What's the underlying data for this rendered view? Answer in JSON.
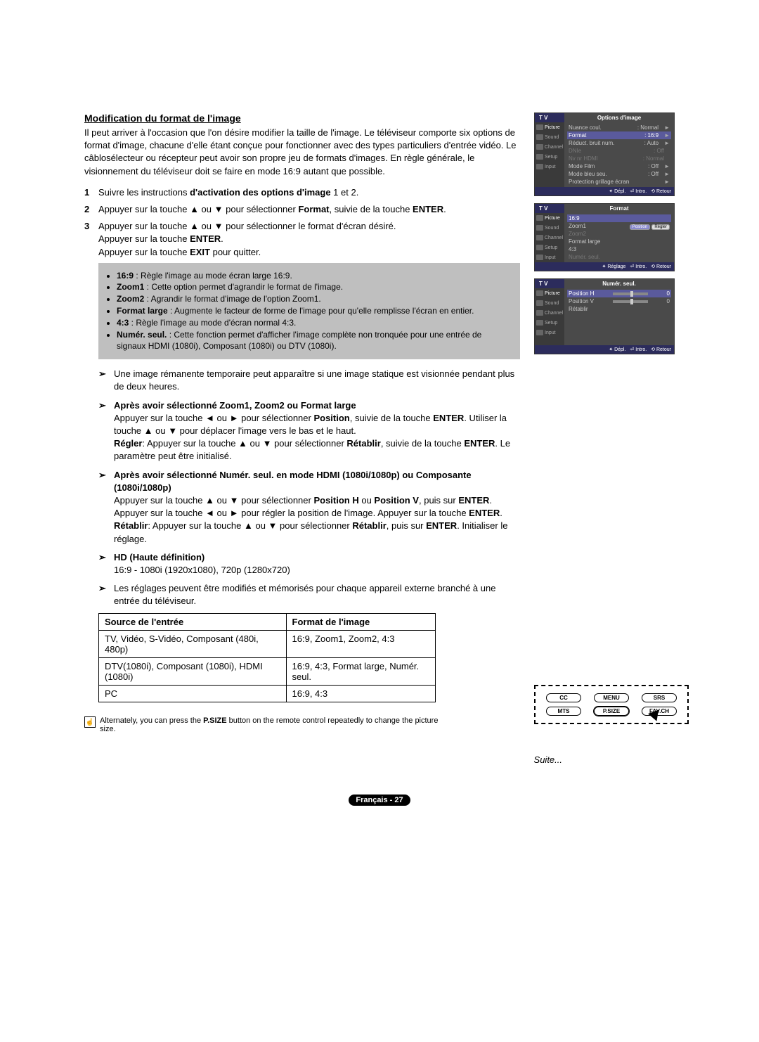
{
  "section_title": "Modification du format de l'image",
  "intro": "Il peut arriver à l'occasion que l'on désire modifier la taille de l'image. Le téléviseur comporte six options de format d'image, chacune d'elle étant conçue pour fonctionner avec des types particuliers d'entrée vidéo. Le câblosélecteur ou récepteur peut avoir son propre jeu de formats d'images. En règle générale, le visionnement du téléviseur doit se faire en mode 16:9 autant que possible.",
  "steps": {
    "s1_pre": "Suivre les instructions ",
    "s1_bold": "d'activation des options d'image",
    "s1_post": " 1 et 2.",
    "s2_pre": "Appuyer sur la touche ▲ ou ▼ pour sélectionner ",
    "s2_bold1": "Format",
    "s2_mid": ", suivie de la touche ",
    "s2_bold2": "ENTER",
    "s2_post": ".",
    "s3_l1": "Appuyer sur la touche ▲ ou ▼ pour sélectionner le format d'écran désiré.",
    "s3_l2_pre": "Appuyer sur la touche ",
    "s3_l2_bold": "ENTER",
    "s3_l2_post": ".",
    "s3_l3_pre": "Appuyer sur la touche ",
    "s3_l3_bold": "EXIT",
    "s3_l3_post": " pour quitter."
  },
  "gray_items": [
    {
      "b": "16:9",
      "t": " : Règle l'image au mode écran large 16:9."
    },
    {
      "b": "Zoom1",
      "t": " : Cette option permet d'agrandir le format de l'image."
    },
    {
      "b": "Zoom2",
      "t": " : Agrandir le format d'image de l'option Zoom1."
    },
    {
      "b": "Format large",
      "t": " : Augmente le facteur de forme de l'image pour qu'elle remplisse l'écran en entier."
    },
    {
      "b": "4:3",
      "t": " : Règle l'image au mode d'écran normal 4:3."
    },
    {
      "b": "Numér. seul.",
      "t": " : Cette fonction permet d'afficher l'image complète non tronquée pour une entrée de signaux HDMI (1080i), Composant (1080i) ou DTV (1080i)."
    }
  ],
  "notes": {
    "n1": "Une image rémanente temporaire peut apparaître si une image statique est visionnée pendant plus de deux heures.",
    "n2_title": "Après avoir sélectionné Zoom1, Zoom2 ou Format large",
    "n2_body": "Appuyer sur la touche ◄ ou ► pour sélectionner <b>Position</b>, suivie de la touche <b>ENTER</b>. Utiliser la touche ▲ ou ▼ pour déplacer l'image vers le bas et le haut.<br><b>Régler</b>: Appuyer sur la touche ▲ ou ▼ pour sélectionner <b>Rétablir</b>, suivie de la touche <b>ENTER</b>. Le paramètre peut être initialisé.",
    "n3_title": "Après avoir sélectionné Numér. seul. en mode HDMI (1080i/1080p) ou Composante (1080i/1080p)",
    "n3_body": "Appuyer sur la touche ▲ ou ▼ pour sélectionner <b>Position H</b> ou <b>Position V</b>, puis sur <b>ENTER</b>. Appuyer sur la touche ◄ ou ► pour régler la position de l'image. Appuyer sur la touche <b>ENTER</b>.<br><b>Rétablir</b>: Appuyer sur la touche ▲ ou ▼ pour sélectionner <b>Rétablir</b>, puis sur <b>ENTER</b>. Initialiser le réglage.",
    "n4_title": "HD (Haute définition)",
    "n4_body": "16:9 - 1080i (1920x1080), 720p (1280x720)",
    "n5": "Les réglages peuvent être modifiés et mémorisés pour chaque appareil externe branché à une entrée du téléviseur."
  },
  "table": {
    "h1": "Source de l'entrée",
    "h2": "Format de l'image",
    "rows": [
      [
        "TV, Vidéo, S-Vidéo, Composant (480i, 480p)",
        "16:9, Zoom1, Zoom2, 4:3"
      ],
      [
        "DTV(1080i), Composant (1080i), HDMI (1080i)",
        "16:9, 4:3, Format large, Numér. seul."
      ],
      [
        "PC",
        "16:9, 4:3"
      ]
    ]
  },
  "tip": "Alternately, you can press the <b>P.SIZE</b> button on the remote control repeatedly to change the picture size.",
  "suite": "Suite...",
  "footer": "Français - 27",
  "osd": {
    "tv": "T V",
    "side": [
      "Picture",
      "Sound",
      "Channel",
      "Setup",
      "Input"
    ],
    "footer_items": {
      "depl": "Dépl.",
      "intro": "Intro.",
      "retour": "Retour",
      "reglage": "Réglage"
    },
    "menu1": {
      "title": "Options d'image",
      "rows": [
        {
          "l": "Nuance coul.",
          "v": ": Normal",
          "arw": "►"
        },
        {
          "l": "Format",
          "v": ": 16:9",
          "arw": "►",
          "hl": true
        },
        {
          "l": "Réduct. bruit num.",
          "v": ": Auto",
          "arw": "►"
        },
        {
          "l": "DNIe",
          "v": ": Off",
          "dim": true
        },
        {
          "l": "Nv nr HDMI",
          "v": ": Normal",
          "dim": true
        },
        {
          "l": "Mode Film",
          "v": ": Off",
          "arw": "►"
        },
        {
          "l": "Mode bleu seu.",
          "v": ": Off",
          "arw": "►"
        },
        {
          "l": "Protection grillage écran",
          "v": "",
          "arw": "►"
        }
      ]
    },
    "menu2": {
      "title": "Format",
      "rows": [
        {
          "l": "16:9",
          "hl": true
        },
        {
          "l": "Zoom1"
        },
        {
          "l": "Zoom2",
          "dim": true
        },
        {
          "l": "Format large"
        },
        {
          "l": "4:3"
        },
        {
          "l": "Numér. seul.",
          "dim": true
        }
      ],
      "btn1": "Position",
      "btn2": "Régler"
    },
    "menu3": {
      "title": "Numér. seul.",
      "rows": [
        {
          "l": "Position H",
          "slider": true,
          "v": "0",
          "hl": true
        },
        {
          "l": "Position V",
          "slider": true,
          "v": "0"
        },
        {
          "l": "Rétablir"
        }
      ]
    }
  },
  "remote": {
    "buttons": [
      "CC",
      "MENU",
      "SRS",
      "MTS",
      "P.SIZE",
      "FAV.CH"
    ],
    "highlight": "P.SIZE"
  }
}
